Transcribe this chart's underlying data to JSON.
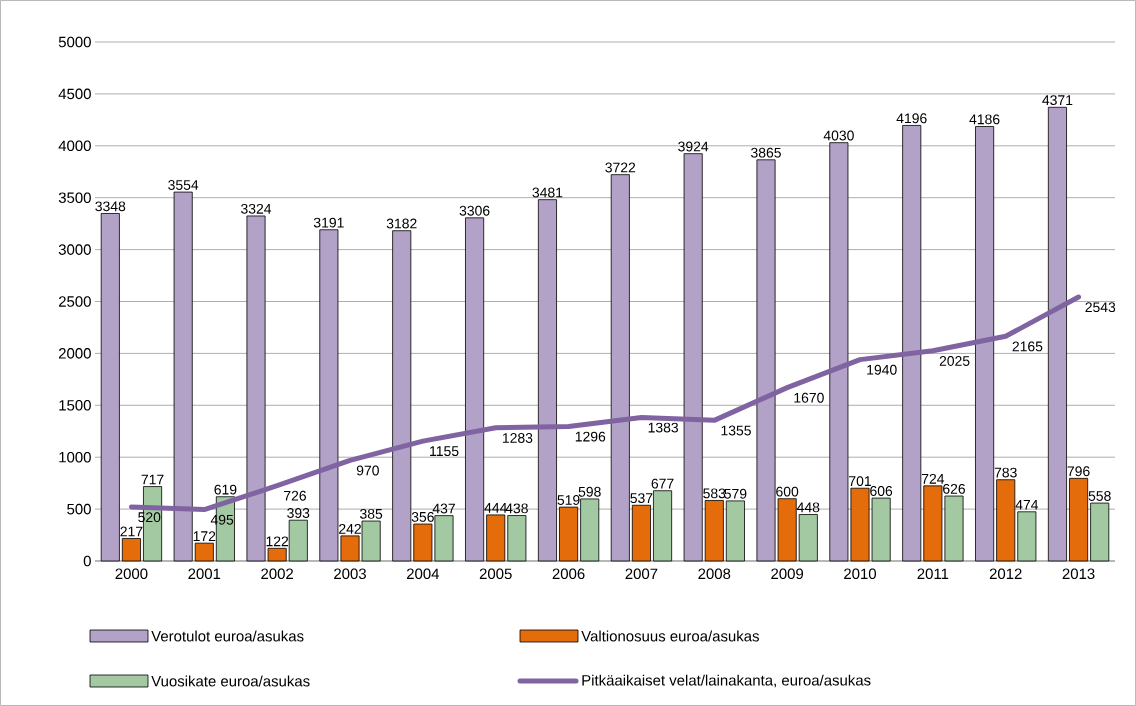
{
  "chart_data": {
    "type": "bar",
    "categories": [
      "2000",
      "2001",
      "2002",
      "2003",
      "2004",
      "2005",
      "2006",
      "2007",
      "2008",
      "2009",
      "2010",
      "2011",
      "2012",
      "2013"
    ],
    "series": [
      {
        "name": "Verotulot euroa/asukas",
        "color": "#b3a2c7",
        "values": [
          3348,
          3554,
          3324,
          3191,
          3182,
          3306,
          3481,
          3722,
          3924,
          3865,
          4030,
          4196,
          4186,
          4371
        ]
      },
      {
        "name": "Valtionosuus euroa/asukas",
        "color": "#e46c0a",
        "values": [
          217,
          172,
          122,
          242,
          356,
          444,
          519,
          537,
          583,
          600,
          701,
          724,
          783,
          796
        ]
      },
      {
        "name": "Vuosikate euroa/asukas",
        "color": "#a3c9a3",
        "values": [
          717,
          619,
          393,
          385,
          437,
          438,
          598,
          677,
          579,
          448,
          606,
          626,
          474,
          558
        ]
      },
      {
        "name": "Pitkäaikaiset velat/lainakanta, euroa/asukas",
        "type": "line",
        "color": "#8064a2",
        "values": [
          520,
          495,
          726,
          970,
          1155,
          1283,
          1296,
          1383,
          1355,
          1670,
          1940,
          2025,
          2165,
          2543
        ]
      }
    ],
    "ylim": [
      0,
      5000
    ],
    "yticks": [
      0,
      500,
      1000,
      1500,
      2000,
      2500,
      3000,
      3500,
      4000,
      4500,
      5000
    ],
    "grid": "y",
    "legend": "bottom",
    "data_labels": true
  }
}
